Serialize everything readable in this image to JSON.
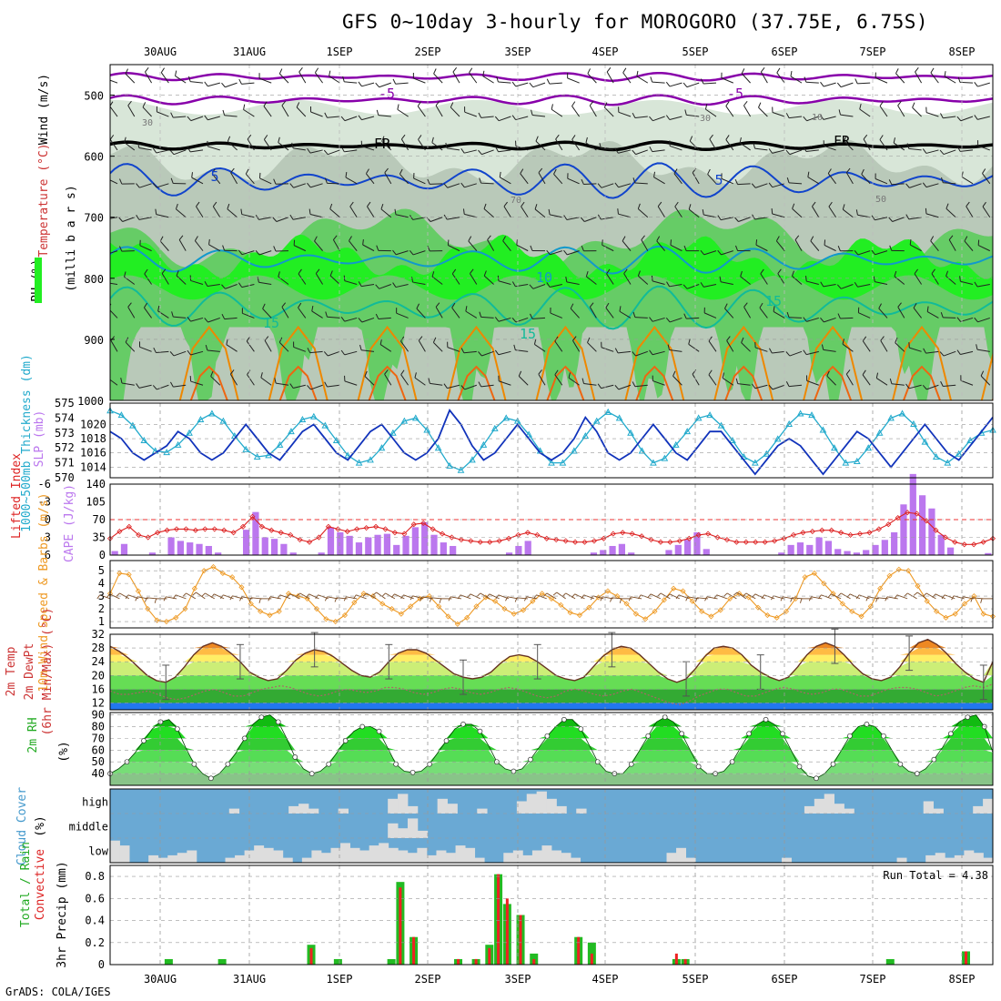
{
  "title": "GFS 0~10day 3-hourly for MOROGORO (37.75E, 6.75S)",
  "credit": "GrADS: COLA/IGES",
  "colors": {
    "rh_light": "#d8e6d8",
    "rh_mid": "#b9c9b9",
    "rh_green": "#66cc66",
    "rh_bright": "#22ee22",
    "temp_purple": "#8800aa",
    "temp_blue": "#1144cc",
    "temp_cyan": "#1199cc",
    "temp_teal": "#11bb99",
    "temp_orange": "#ee8800",
    "slp": "#1133bb",
    "thickness": "#22aacc",
    "cape": "#bb77ee",
    "lifted": "#dd2222",
    "wind10": "#ee9922",
    "cloud_bg": "#6aa9d4",
    "cloud": "#dddddd",
    "precip_total": "#22bb22",
    "precip_conv": "#ee2222"
  },
  "chart_data": {
    "type": "meteogram",
    "x": {
      "day_labels": [
        "30AUG",
        "31AUG",
        "1SEP",
        "2SEP",
        "3SEP",
        "4SEP",
        "5SEP",
        "6SEP",
        "7SEP",
        "8SEP"
      ]
    },
    "panels": {
      "upper_air": {
        "ylabels": [
          "Wind (m/s)",
          "Temperature (°C)",
          "RH (%)",
          "(milli b a r s)"
        ],
        "yticks": [
          "500",
          "600",
          "700",
          "800",
          "900",
          "1000"
        ],
        "ylim": [
          1000,
          450
        ],
        "isotherm_labels": [
          "-5",
          "-5",
          "FR",
          "FR",
          "5",
          "5",
          "10",
          "15",
          "15",
          "15",
          "30",
          "30",
          "50",
          "10",
          "70"
        ]
      },
      "slp_thickness": {
        "ylabels": [
          "1000~500mb Thickness (dm)",
          "SLP (mb)"
        ],
        "thickness_ticks": [
          "575",
          "574",
          "573",
          "572",
          "571",
          "570"
        ],
        "slp_ticks": [
          "1020",
          "1018",
          "1016",
          "1014"
        ],
        "slp": [
          1019,
          1018,
          1016,
          1015,
          1016,
          1017,
          1019,
          1018,
          1016,
          1015,
          1016,
          1018,
          1020,
          1018,
          1016,
          1015,
          1017,
          1019,
          1020,
          1018,
          1016,
          1015,
          1017,
          1019,
          1020,
          1018,
          1016,
          1015,
          1016,
          1018,
          1022,
          1020,
          1017,
          1015,
          1016,
          1018,
          1020,
          1018,
          1016,
          1015,
          1016,
          1018,
          1021,
          1019,
          1016,
          1015,
          1016,
          1018,
          1020,
          1018,
          1016,
          1015,
          1017,
          1019,
          1019,
          1017,
          1015,
          1013,
          1015,
          1017,
          1018,
          1017,
          1015,
          1013,
          1015,
          1017,
          1019,
          1018,
          1016,
          1014,
          1016,
          1018,
          1020,
          1018,
          1016,
          1015,
          1017,
          1019,
          1021
        ],
        "thickness": [
          574.5,
          574.2,
          573.5,
          572.5,
          571.8,
          571.7,
          572.2,
          573.0,
          573.9,
          574.3,
          573.8,
          572.8,
          571.9,
          571.4,
          571.5,
          572.2,
          573.1,
          573.9,
          574.1,
          573.5,
          572.5,
          571.5,
          571.0,
          571.2,
          572.0,
          573.0,
          573.8,
          574.0,
          573.2,
          572.0,
          570.8,
          570.5,
          571.2,
          572.2,
          573.3,
          574.0,
          573.8,
          572.9,
          571.8,
          571.0,
          571.0,
          571.8,
          572.8,
          573.8,
          574.4,
          574.0,
          573.0,
          571.8,
          571.0,
          571.3,
          572.2,
          573.1,
          574.0,
          574.2,
          573.5,
          572.5,
          571.4,
          571.0,
          571.6,
          572.6,
          573.6,
          574.3,
          574.2,
          573.2,
          572.0,
          571.0,
          571.1,
          572.0,
          573.0,
          574.0,
          574.3,
          573.6,
          572.4,
          571.4,
          571.0,
          571.6,
          572.5,
          573.0,
          573.2
        ]
      },
      "cape_li": {
        "ylabels": [
          "Lifted Index",
          "CAPE (J/kg)"
        ],
        "li_ticks": [
          "-6",
          "-3",
          "0",
          "3",
          "6"
        ],
        "cape_ticks": [
          "140",
          "105",
          "70",
          "35",
          "0"
        ],
        "cape": [
          8,
          22,
          0,
          0,
          5,
          0,
          35,
          28,
          25,
          22,
          18,
          5,
          0,
          0,
          50,
          85,
          35,
          32,
          22,
          5,
          0,
          0,
          5,
          55,
          45,
          38,
          25,
          35,
          40,
          42,
          20,
          38,
          55,
          65,
          40,
          25,
          18,
          0,
          0,
          0,
          0,
          0,
          5,
          18,
          28,
          0,
          0,
          0,
          0,
          0,
          0,
          5,
          10,
          18,
          22,
          5,
          0,
          0,
          0,
          10,
          20,
          30,
          45,
          12,
          0,
          0,
          0,
          0,
          0,
          0,
          0,
          5,
          20,
          25,
          20,
          35,
          28,
          12,
          8,
          5,
          10,
          20,
          30,
          45,
          100,
          160,
          118,
          92,
          40,
          15,
          0,
          0,
          0,
          4
        ],
        "lifted_index": [
          3.2,
          2.0,
          1.2,
          2.6,
          3.0,
          2.2,
          1.8,
          1.6,
          1.6,
          1.8,
          1.6,
          1.6,
          1.8,
          2.2,
          1.2,
          -0.5,
          1.2,
          1.8,
          2.2,
          2.6,
          3.4,
          3.8,
          3.0,
          1.2,
          1.6,
          2.0,
          1.6,
          1.4,
          1.2,
          1.6,
          2.2,
          2.4,
          0.8,
          0.6,
          1.6,
          2.4,
          3.0,
          3.4,
          3.6,
          3.8,
          3.8,
          3.6,
          3.2,
          2.6,
          2.2,
          2.6,
          3.2,
          3.4,
          3.6,
          3.8,
          3.8,
          3.6,
          3.2,
          2.4,
          2.2,
          2.4,
          2.8,
          3.4,
          3.8,
          3.8,
          3.6,
          3.2,
          2.6,
          2.4,
          3.0,
          3.4,
          3.8,
          3.8,
          3.8,
          3.8,
          3.6,
          3.2,
          2.6,
          2.2,
          2.0,
          1.8,
          1.8,
          2.2,
          2.6,
          2.4,
          2.2,
          1.6,
          0.8,
          -0.3,
          -1.2,
          -1.0,
          0.2,
          1.8,
          3.0,
          3.8,
          4.2,
          4.2,
          3.8,
          3.2
        ]
      },
      "wind10": {
        "ylabels": [
          "10m Wind Speed & Barbs (m/s)"
        ],
        "ylim": [
          0.5,
          5.8
        ],
        "yticks": [
          "5",
          "4",
          "3",
          "2",
          "1"
        ],
        "speed": [
          3.2,
          4.8,
          4.7,
          3.4,
          2.0,
          1.1,
          1.0,
          1.3,
          2.0,
          3.6,
          5.0,
          5.3,
          4.8,
          4.5,
          3.7,
          2.4,
          1.8,
          1.5,
          1.8,
          3.2,
          3.0,
          2.8,
          2.0,
          1.2,
          1.0,
          1.5,
          2.5,
          3.2,
          3.0,
          2.4,
          2.0,
          1.6,
          2.2,
          2.8,
          3.0,
          2.2,
          1.4,
          0.8,
          1.3,
          2.2,
          2.9,
          2.6,
          2.0,
          1.6,
          1.9,
          2.6,
          3.2,
          2.8,
          2.3,
          1.7,
          1.5,
          2.1,
          2.9,
          3.4,
          3.0,
          2.4,
          1.6,
          1.2,
          1.8,
          2.7,
          3.6,
          3.4,
          2.6,
          1.8,
          1.4,
          1.9,
          2.8,
          3.2,
          2.9,
          2.1,
          1.5,
          1.3,
          1.8,
          2.8,
          4.5,
          4.8,
          4.0,
          3.2,
          2.4,
          1.8,
          1.4,
          2.2,
          3.6,
          4.6,
          5.1,
          5.0,
          3.8,
          2.6,
          1.8,
          1.3,
          1.6,
          2.4,
          3.0,
          1.6,
          1.4
        ],
        "barb_dir_deg": [
          110,
          115,
          120,
          110,
          100,
          95,
          90,
          100,
          110,
          120,
          125,
          120,
          115,
          110,
          105,
          100,
          95,
          90,
          100,
          110,
          115,
          120,
          115,
          110,
          100,
          95,
          100,
          110,
          120,
          125,
          120,
          115,
          110,
          105,
          100,
          95,
          90,
          100,
          110,
          115,
          120,
          115,
          110,
          100,
          95,
          100,
          110,
          120,
          125,
          120,
          115,
          110,
          105,
          100,
          95,
          90,
          100,
          110,
          115,
          120,
          115,
          110,
          100,
          95,
          100,
          110,
          120,
          125,
          120,
          115,
          110,
          105,
          100,
          95,
          90,
          100,
          110,
          115,
          120,
          115,
          110,
          100,
          95,
          100,
          110,
          120,
          125,
          120,
          115,
          110,
          105,
          100,
          95,
          90
        ]
      },
      "temp2m": {
        "ylabels": [
          "2m Temp",
          "2m DewPt",
          "(6hr Min/Max) (°C)"
        ],
        "ylim": [
          10,
          32
        ],
        "yticks": [
          "32",
          "28",
          "24",
          "20",
          "16",
          "12"
        ],
        "bands": [
          {
            "from": 10,
            "to": 12,
            "color": "#2277ee"
          },
          {
            "from": 12,
            "to": 16,
            "color": "#33aa33"
          },
          {
            "from": 16,
            "to": 20,
            "color": "#66dd55"
          },
          {
            "from": 20,
            "to": 24,
            "color": "#ccee77"
          },
          {
            "from": 24,
            "to": 26,
            "color": "#ffee66"
          },
          {
            "from": 26,
            "to": 28,
            "color": "#ffbb44"
          },
          {
            "from": 28,
            "to": 32,
            "color": "#ee8822"
          }
        ],
        "temp": [
          28.5,
          27.0,
          25.0,
          22.5,
          20.0,
          18.5,
          18.0,
          19.5,
          22.5,
          26.0,
          28.5,
          29.5,
          28.5,
          26.5,
          24.0,
          21.0,
          19.5,
          18.5,
          19.0,
          21.5,
          24.5,
          26.5,
          27.5,
          27.0,
          25.5,
          23.5,
          21.5,
          20.0,
          19.5,
          21.0,
          24.0,
          26.5,
          27.5,
          27.5,
          26.5,
          24.5,
          22.5,
          20.5,
          19.5,
          19.0,
          19.5,
          21.0,
          23.5,
          25.5,
          26.0,
          25.5,
          24.0,
          22.0,
          20.0,
          19.0,
          18.5,
          19.5,
          22.5,
          25.5,
          27.5,
          28.5,
          28.0,
          26.0,
          23.5,
          21.0,
          19.0,
          18.0,
          19.0,
          22.0,
          25.5,
          28.0,
          28.5,
          28.0,
          26.0,
          23.0,
          21.0,
          19.5,
          18.5,
          19.5,
          22.5,
          26.0,
          28.5,
          29.5,
          28.5,
          26.0,
          23.0,
          20.5,
          19.0,
          18.5,
          19.5,
          22.5,
          26.5,
          29.5,
          30.5,
          29.0,
          26.5,
          23.5,
          21.0,
          19.0,
          18.0,
          24.0
        ],
        "dewpt": [
          15.5,
          14.5,
          14.5,
          15.0,
          15.5,
          14.5,
          13.5,
          13.0,
          13.5,
          14.5,
          15.5,
          16.0,
          15.0,
          14.0,
          14.0,
          15.0,
          16.0,
          16.5,
          17.0,
          16.5,
          15.5,
          14.5,
          14.0,
          14.5,
          15.5,
          16.0,
          15.5,
          15.0,
          15.5,
          16.5,
          16.5,
          16.0,
          15.0,
          14.5,
          15.0,
          16.0,
          16.5,
          16.0,
          15.0,
          14.5,
          15.0,
          16.0,
          16.5,
          16.0,
          15.0,
          14.0,
          13.5,
          14.0,
          15.5,
          16.0,
          15.5,
          14.5,
          14.0,
          14.5,
          15.5,
          16.0,
          15.0,
          14.0,
          13.0,
          12.0,
          11.5,
          12.5,
          14.0,
          15.0,
          16.0,
          16.0,
          15.0,
          14.0,
          14.0,
          15.0,
          16.0,
          16.5,
          16.0,
          15.0,
          14.5,
          15.0,
          16.0,
          16.0,
          15.0,
          14.0,
          14.0,
          15.0,
          16.0,
          16.5,
          16.5,
          16.0,
          15.0,
          14.0,
          14.5,
          15.5,
          16.5,
          17.0,
          16.5,
          17.5
        ]
      },
      "rh2m": {
        "ylabels": [
          "2m RH",
          "(%)"
        ],
        "ylim": [
          30,
          92
        ],
        "yticks": [
          "90",
          "80",
          "70",
          "60",
          "50",
          "40"
        ],
        "values": [
          40,
          44,
          50,
          58,
          68,
          78,
          84,
          86,
          78,
          62,
          48,
          40,
          36,
          40,
          48,
          58,
          70,
          82,
          88,
          90,
          84,
          70,
          54,
          44,
          40,
          42,
          48,
          58,
          68,
          76,
          80,
          80,
          76,
          62,
          48,
          42,
          41,
          42,
          48,
          58,
          68,
          78,
          82,
          82,
          76,
          64,
          50,
          44,
          42,
          44,
          52,
          62,
          72,
          80,
          86,
          86,
          78,
          64,
          50,
          42,
          40,
          40,
          48,
          60,
          72,
          84,
          88,
          84,
          74,
          60,
          46,
          40,
          40,
          42,
          50,
          62,
          74,
          82,
          86,
          82,
          74,
          60,
          46,
          38,
          36,
          40,
          48,
          60,
          72,
          80,
          82,
          80,
          72,
          60,
          48,
          42,
          40,
          44,
          52,
          62,
          74,
          84,
          88,
          90,
          80,
          58
        ]
      },
      "cloud_cover": {
        "ylabels": [
          "Cloud Cover",
          "(%)"
        ],
        "levels": [
          "high",
          "middle",
          "low"
        ]
      },
      "precip": {
        "ylabels": [
          "Total / Rain",
          "Convective",
          "3hr Precip (mm)"
        ],
        "ylim": [
          0,
          0.9
        ],
        "yticks": [
          "0.8",
          "0.6",
          "0.4",
          "0.2",
          "0"
        ],
        "run_total_label": "Run Total = 4.38"
      }
    }
  }
}
